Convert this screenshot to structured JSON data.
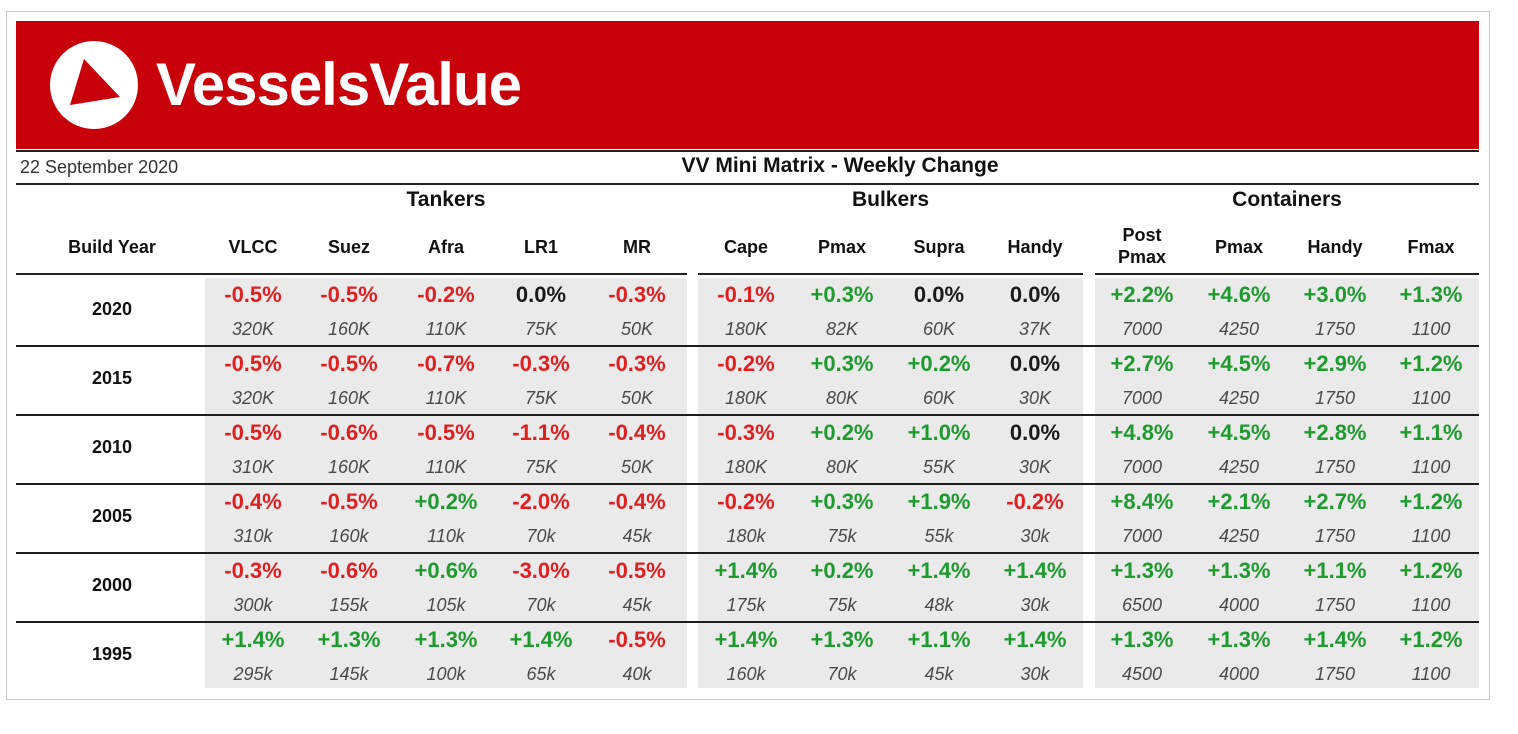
{
  "brand": {
    "name": "VesselsValue",
    "color": "#c8000a"
  },
  "header": {
    "date": "22 September 2020",
    "title": "VV Mini Matrix - Weekly Change"
  },
  "groups": [
    {
      "label": "Tankers",
      "columns": [
        "VLCC",
        "Suez",
        "Afra",
        "LR1",
        "MR"
      ]
    },
    {
      "label": "Bulkers",
      "columns": [
        "Cape",
        "Pmax",
        "Supra",
        "Handy"
      ]
    },
    {
      "label": "Containers",
      "columns": [
        "Post Pmax",
        "Pmax",
        "Handy",
        "Fmax"
      ]
    }
  ],
  "row_header": "Build Year",
  "rows": [
    {
      "year": "2020",
      "tankers": [
        [
          "-0.5%",
          "320K"
        ],
        [
          "-0.5%",
          "160K"
        ],
        [
          "-0.2%",
          "110K"
        ],
        [
          "0.0%",
          "75K"
        ],
        [
          "-0.3%",
          "50K"
        ]
      ],
      "bulkers": [
        [
          "-0.1%",
          "180K"
        ],
        [
          "+0.3%",
          "82K"
        ],
        [
          "0.0%",
          "60K"
        ],
        [
          "0.0%",
          "37K"
        ]
      ],
      "containers": [
        [
          "+2.2%",
          "7000"
        ],
        [
          "+4.6%",
          "4250"
        ],
        [
          "+3.0%",
          "1750"
        ],
        [
          "+1.3%",
          "1100"
        ]
      ]
    },
    {
      "year": "2015",
      "tankers": [
        [
          "-0.5%",
          "320K"
        ],
        [
          "-0.5%",
          "160K"
        ],
        [
          "-0.7%",
          "110K"
        ],
        [
          "-0.3%",
          "75K"
        ],
        [
          "-0.3%",
          "50K"
        ]
      ],
      "bulkers": [
        [
          "-0.2%",
          "180K"
        ],
        [
          "+0.3%",
          "80K"
        ],
        [
          "+0.2%",
          "60K"
        ],
        [
          "0.0%",
          "30K"
        ]
      ],
      "containers": [
        [
          "+2.7%",
          "7000"
        ],
        [
          "+4.5%",
          "4250"
        ],
        [
          "+2.9%",
          "1750"
        ],
        [
          "+1.2%",
          "1100"
        ]
      ]
    },
    {
      "year": "2010",
      "tankers": [
        [
          "-0.5%",
          "310K"
        ],
        [
          "-0.6%",
          "160K"
        ],
        [
          "-0.5%",
          "110K"
        ],
        [
          "-1.1%",
          "75K"
        ],
        [
          "-0.4%",
          "50K"
        ]
      ],
      "bulkers": [
        [
          "-0.3%",
          "180K"
        ],
        [
          "+0.2%",
          "80K"
        ],
        [
          "+1.0%",
          "55K"
        ],
        [
          "0.0%",
          "30K"
        ]
      ],
      "containers": [
        [
          "+4.8%",
          "7000"
        ],
        [
          "+4.5%",
          "4250"
        ],
        [
          "+2.8%",
          "1750"
        ],
        [
          "+1.1%",
          "1100"
        ]
      ]
    },
    {
      "year": "2005",
      "tankers": [
        [
          "-0.4%",
          "310k"
        ],
        [
          "-0.5%",
          "160k"
        ],
        [
          "+0.2%",
          "110k"
        ],
        [
          "-2.0%",
          "70k"
        ],
        [
          "-0.4%",
          "45k"
        ]
      ],
      "bulkers": [
        [
          "-0.2%",
          "180k"
        ],
        [
          "+0.3%",
          "75k"
        ],
        [
          "+1.9%",
          "55k"
        ],
        [
          "-0.2%",
          "30k"
        ]
      ],
      "containers": [
        [
          "+8.4%",
          "7000"
        ],
        [
          "+2.1%",
          "4250"
        ],
        [
          "+2.7%",
          "1750"
        ],
        [
          "+1.2%",
          "1100"
        ]
      ]
    },
    {
      "year": "2000",
      "tankers": [
        [
          "-0.3%",
          "300k"
        ],
        [
          "-0.6%",
          "155k"
        ],
        [
          "+0.6%",
          "105k"
        ],
        [
          "-3.0%",
          "70k"
        ],
        [
          "-0.5%",
          "45k"
        ]
      ],
      "bulkers": [
        [
          "+1.4%",
          "175k"
        ],
        [
          "+0.2%",
          "75k"
        ],
        [
          "+1.4%",
          "48k"
        ],
        [
          "+1.4%",
          "30k"
        ]
      ],
      "containers": [
        [
          "+1.3%",
          "6500"
        ],
        [
          "+1.3%",
          "4000"
        ],
        [
          "+1.1%",
          "1750"
        ],
        [
          "+1.2%",
          "1100"
        ]
      ]
    },
    {
      "year": "1995",
      "tankers": [
        [
          "+1.4%",
          "295k"
        ],
        [
          "+1.3%",
          "145k"
        ],
        [
          "+1.3%",
          "100k"
        ],
        [
          "+1.4%",
          "65k"
        ],
        [
          "-0.5%",
          "40k"
        ]
      ],
      "bulkers": [
        [
          "+1.4%",
          "160k"
        ],
        [
          "+1.3%",
          "70k"
        ],
        [
          "+1.1%",
          "45k"
        ],
        [
          "+1.4%",
          "30k"
        ]
      ],
      "containers": [
        [
          "+1.3%",
          "4500"
        ],
        [
          "+1.3%",
          "4000"
        ],
        [
          "+1.4%",
          "1750"
        ],
        [
          "+1.2%",
          "1100"
        ]
      ]
    }
  ],
  "colors": {
    "negative": "#e02020",
    "positive": "#1e9a2e",
    "neutral": "#1a1a1a"
  }
}
